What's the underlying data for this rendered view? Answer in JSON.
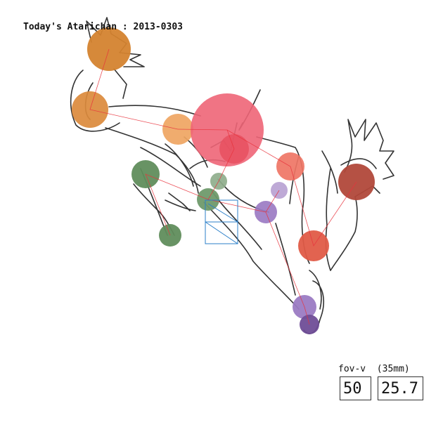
{
  "title": "Today's Atarichan : 2013-0303",
  "fov": {
    "label_fov": "fov-v",
    "label_mm": "(35mm)",
    "fov_value": "50",
    "mm_value": "25.7"
  },
  "colors": {
    "orange": "#d4832f",
    "light_orange": "#efa562",
    "pink": "#ee6577",
    "red_orange": "#ef7565",
    "red": "#e05b47",
    "brown_red": "#b1483a",
    "green": "#608d5c",
    "light_green": "#8fae8c",
    "purple": "#9b7bc3",
    "light_purple": "#b8a2d2",
    "dark_purple": "#6f4d97",
    "skeleton": "#e8323c",
    "sketch": "#333333",
    "camera": "#2b7fc9"
  }
}
